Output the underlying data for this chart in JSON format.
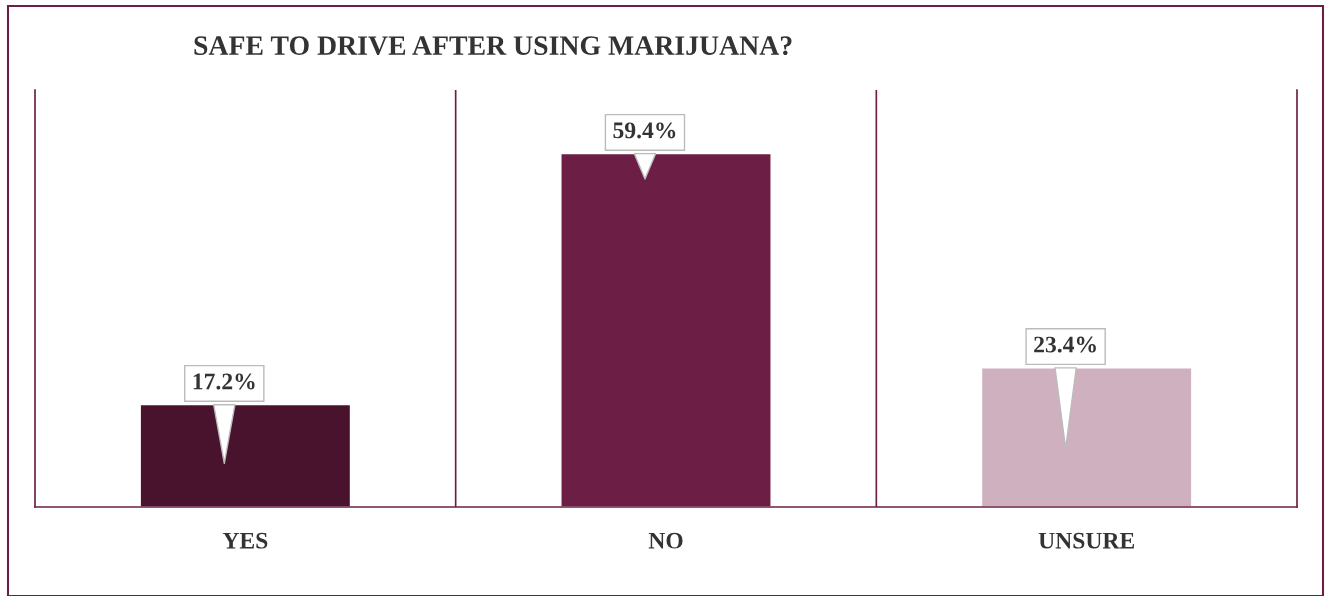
{
  "chart_data": {
    "type": "bar",
    "title": "SAFE TO DRIVE AFTER USING MARIJUANA?",
    "categories": [
      "YES",
      "NO",
      "UNSURE"
    ],
    "values": [
      17.2,
      59.4,
      23.4
    ],
    "colors": [
      "#49132e",
      "#6d1e44",
      "#ceb0bf"
    ],
    "value_labels": [
      "17.2%",
      "59.4%",
      "23.4%"
    ],
    "grid": false,
    "legend": false
  }
}
